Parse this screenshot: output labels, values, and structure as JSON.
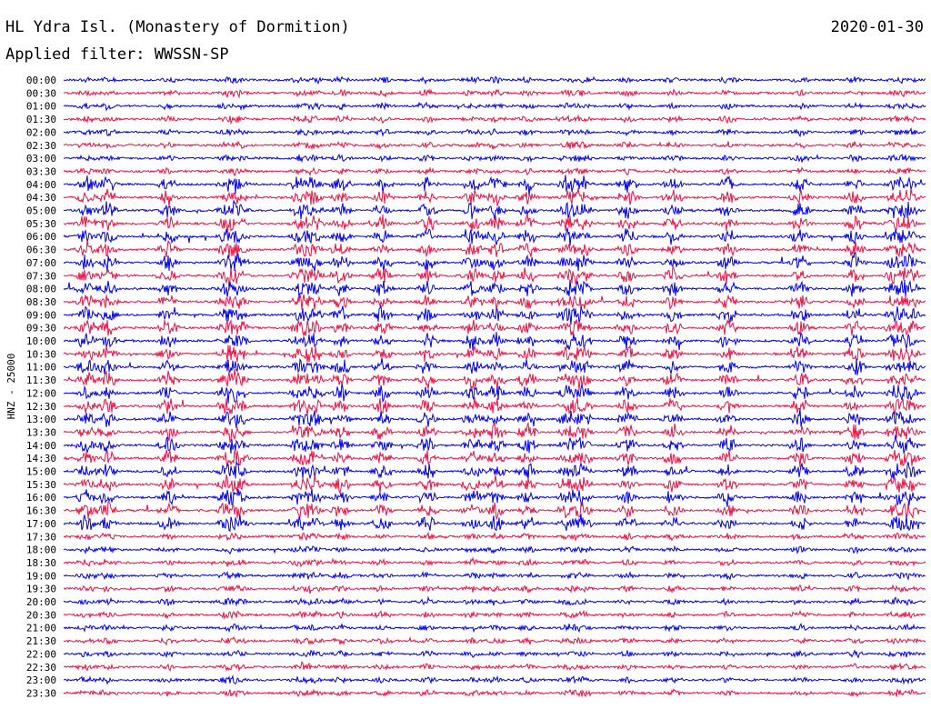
{
  "header": {
    "station": "HL Ydra Isl. (Monastery of Dormition)",
    "date": "2020-01-30",
    "filter": "Applied filter: WWSSN-SP"
  },
  "chart_data": {
    "type": "line",
    "ylabel": "HNZ - 25000",
    "colors": {
      "even": "#0000ee",
      "odd": "#ee1144"
    },
    "rows": [
      "00:00",
      "00:30",
      "01:00",
      "01:30",
      "02:00",
      "02:30",
      "03:00",
      "03:30",
      "04:00",
      "04:30",
      "05:00",
      "05:30",
      "06:00",
      "06:30",
      "07:00",
      "07:30",
      "08:00",
      "08:30",
      "09:00",
      "09:30",
      "10:00",
      "10:30",
      "11:00",
      "11:30",
      "12:00",
      "12:30",
      "13:00",
      "13:30",
      "14:00",
      "14:30",
      "15:00",
      "15:30",
      "16:00",
      "16:30",
      "17:00",
      "17:30",
      "18:00",
      "18:30",
      "19:00",
      "19:30",
      "20:00",
      "20:30",
      "21:00",
      "21:30",
      "22:00",
      "22:30",
      "23:00",
      "23:30"
    ]
  }
}
